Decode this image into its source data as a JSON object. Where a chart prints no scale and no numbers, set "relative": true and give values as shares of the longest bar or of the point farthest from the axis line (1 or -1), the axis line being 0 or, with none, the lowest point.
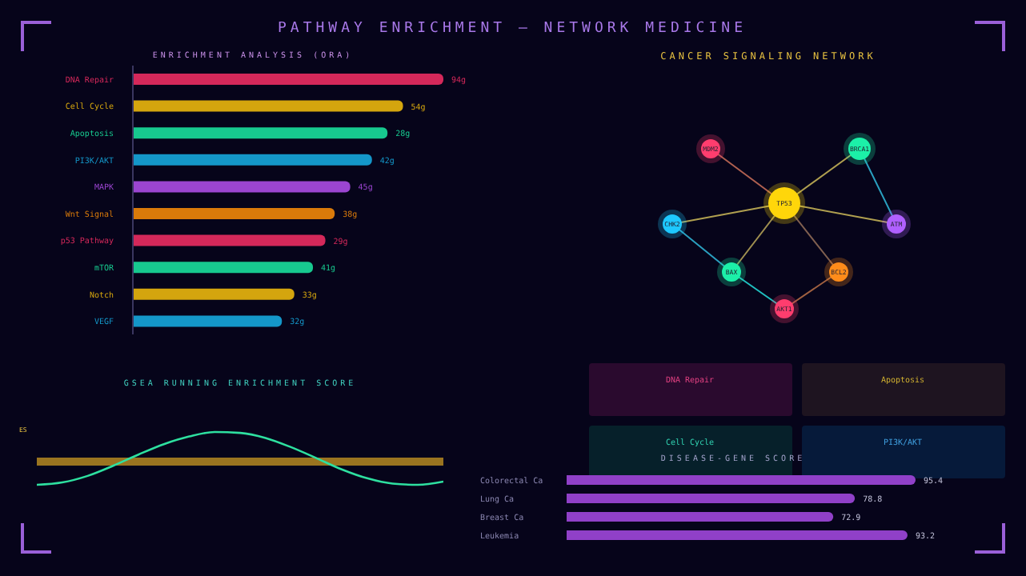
{
  "chart_data": [
    {
      "type": "bar",
      "orientation": "horizontal",
      "relative": true,
      "title": "PATHWAY ENRICHMENT — NETWORK MEDICINE",
      "subtitle": "ENRICHMENT ANALYSIS (ORA)",
      "categories": [
        "DNA Repair",
        "Cell Cycle",
        "Apoptosis",
        "PI3K/AKT",
        "MAPK",
        "Wnt Signal",
        "p53 Pathway",
        "mTOR",
        "Notch",
        "VEGF"
      ],
      "values": [
        1,
        0.87,
        0.82,
        0.77,
        0.7,
        0.65,
        0.62,
        0.58,
        0.52,
        0.48
      ],
      "colors": [
        "#d4285a",
        "#d4a50e",
        "#17c98f",
        "#1497c9",
        "#9b45d1",
        "#d97a0a",
        "#d4285a",
        "#17c98f",
        "#d4a50e",
        "#1497c9"
      ],
      "annotations": [
        {
          "text": "94g",
          "x": 1,
          "y": "DNA Repair"
        },
        {
          "text": "54g",
          "x": 0.87,
          "y": "Cell Cycle"
        },
        {
          "text": "28g",
          "x": 0.82,
          "y": "Apoptosis"
        },
        {
          "text": "42g",
          "x": 0.77,
          "y": "PI3K/AKT"
        },
        {
          "text": "45g",
          "x": 0.7,
          "y": "MAPK"
        },
        {
          "text": "38g",
          "x": 0.65,
          "y": "Wnt Signal"
        },
        {
          "text": "29g",
          "x": 0.62,
          "y": "p53 Pathway"
        },
        {
          "text": "41g",
          "x": 0.58,
          "y": "mTOR"
        },
        {
          "text": "33g",
          "x": 0.52,
          "y": "Notch"
        },
        {
          "text": "32g",
          "x": 0.48,
          "y": "VEGF"
        }
      ]
    },
    {
      "type": "other",
      "title": "CANCER SIGNALING NETWORK",
      "annotations": [
        "TP53",
        "MDM2",
        "BRCA1",
        "CHK2",
        "ATM",
        "BAX",
        "BCL2",
        "AKT1"
      ]
    },
    {
      "type": "line",
      "relative": true,
      "title": "GSEA RUNNING ENRICHMENT SCORE",
      "ylabel": "ES",
      "categories": [
        null,
        null,
        null,
        null,
        null,
        null,
        null,
        null,
        null,
        null,
        null,
        null,
        null,
        null,
        null,
        null,
        null
      ],
      "series": [
        {
          "color": "#2ee0a0",
          "values": [
            -0.78,
            -0.7,
            -0.48,
            -0.14,
            0.24,
            0.59,
            0.85,
            1,
            0.97,
            0.8,
            0.49,
            0.12,
            -0.26,
            -0.56,
            -0.74,
            -0.78,
            -0.67
          ]
        }
      ],
      "ref_lines": [
        {
          "axis": "y",
          "value": 0,
          "color": "#9a7420"
        }
      ],
      "marker": "none"
    },
    {
      "type": "other",
      "annotations": [
        "DNA Repair",
        "Apoptosis",
        "Cell Cycle",
        "PI3K/AKT"
      ]
    },
    {
      "type": "bar",
      "orientation": "horizontal",
      "title": "DISEASE-GENE SCORE",
      "categories": [
        "Colorectal Ca",
        "Lung Ca",
        "Breast Ca",
        "Leukemia"
      ],
      "values": [
        95.4,
        78.8,
        72.9,
        93.2
      ],
      "color": "#9040c8",
      "data_labels": true
    }
  ]
}
